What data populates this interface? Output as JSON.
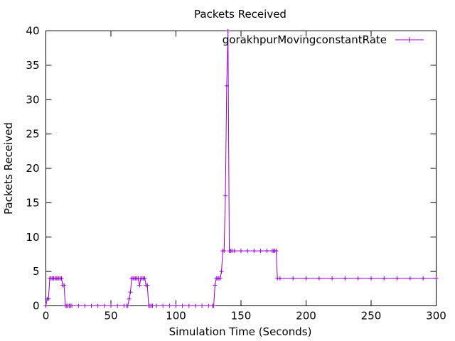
{
  "chart_data": {
    "type": "line",
    "title": "Packets Received",
    "xlabel": "Simulation Time (Seconds)",
    "ylabel": "Packets Received",
    "xlim": [
      0,
      300
    ],
    "ylim": [
      0,
      40
    ],
    "x_ticks": [
      0,
      50,
      100,
      150,
      200,
      250,
      300
    ],
    "y_ticks": [
      0,
      5,
      10,
      15,
      20,
      25,
      30,
      35,
      40
    ],
    "grid": false,
    "legend": "top-right",
    "series": [
      {
        "name": "gorakhpurMovingconstantRate",
        "color": "#9400d3",
        "marker": "plus",
        "x": [
          0,
          1,
          2,
          3,
          4,
          5,
          6,
          7,
          8,
          9,
          10,
          11,
          12,
          13,
          14,
          15,
          16,
          17,
          18,
          19,
          20,
          25,
          30,
          35,
          40,
          45,
          50,
          55,
          60,
          62,
          63,
          64,
          65,
          66,
          67,
          68,
          69,
          70,
          71,
          72,
          73,
          74,
          75,
          76,
          77,
          78,
          79,
          80,
          81,
          82,
          85,
          90,
          95,
          100,
          105,
          110,
          115,
          120,
          125,
          128,
          129,
          130,
          131,
          132,
          133,
          134,
          135,
          136,
          137,
          138,
          139,
          140,
          141,
          142,
          143,
          145,
          150,
          155,
          160,
          165,
          170,
          174,
          175,
          176,
          177,
          178,
          180,
          190,
          200,
          210,
          220,
          230,
          240,
          250,
          260,
          270,
          280,
          290,
          300
        ],
        "y": [
          0,
          1,
          1,
          4,
          4,
          4,
          4,
          4,
          4,
          4,
          4,
          4,
          4,
          3,
          3,
          0,
          0,
          0,
          0,
          0,
          0,
          0,
          0,
          0,
          0,
          0,
          0,
          0,
          0,
          0,
          0,
          1,
          2,
          4,
          4,
          4,
          4,
          4,
          4,
          3,
          4,
          4,
          4,
          4,
          3,
          3,
          0,
          0,
          0,
          0,
          0,
          0,
          0,
          0,
          0,
          0,
          0,
          0,
          0,
          0,
          0,
          3,
          4,
          4,
          4,
          4,
          5,
          8,
          8,
          16,
          32,
          40,
          8,
          8,
          8,
          8,
          8,
          8,
          8,
          8,
          8,
          8,
          8,
          8,
          8,
          4,
          4,
          4,
          4,
          4,
          4,
          4,
          4,
          4,
          4,
          4,
          4,
          4,
          4
        ]
      }
    ]
  }
}
